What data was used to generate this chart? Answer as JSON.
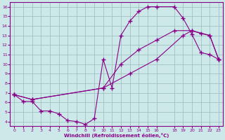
{
  "xlabel": "Windchill (Refroidissement éolien,°C)",
  "xlim": [
    -0.5,
    23.5
  ],
  "ylim": [
    3.5,
    16.5
  ],
  "yticks": [
    4,
    5,
    6,
    7,
    8,
    9,
    10,
    11,
    12,
    13,
    14,
    15,
    16
  ],
  "xticks": [
    0,
    1,
    2,
    3,
    4,
    5,
    6,
    7,
    8,
    9,
    10,
    11,
    12,
    13,
    14,
    15,
    16,
    18,
    19,
    20,
    21,
    22,
    23
  ],
  "xtick_labels": [
    "0",
    "1",
    "2",
    "3",
    "4",
    "5",
    "6",
    "7",
    "8",
    "9",
    "10",
    "11",
    "12",
    "13",
    "14",
    "15",
    "16",
    "18",
    "19",
    "20",
    "21",
    "22",
    "23"
  ],
  "bg_color": "#cde8e8",
  "line_color": "#880088",
  "grid_color": "#99bbbb",
  "line1_x": [
    0,
    1,
    2,
    3,
    4,
    5,
    6,
    7,
    8,
    9,
    10,
    11,
    12,
    13,
    14,
    15,
    16,
    18,
    19,
    20,
    21,
    22,
    23
  ],
  "line1_y": [
    6.8,
    6.1,
    6.1,
    5.1,
    5.1,
    4.8,
    4.1,
    4.0,
    3.7,
    4.3,
    10.5,
    7.5,
    13.0,
    14.5,
    15.5,
    16.0,
    16.0,
    16.0,
    14.8,
    13.1,
    11.2,
    11.0,
    10.5
  ],
  "line2_x": [
    0,
    2,
    10,
    12,
    14,
    16,
    18,
    20,
    21,
    22,
    23
  ],
  "line2_y": [
    6.8,
    6.3,
    7.5,
    10.0,
    11.5,
    12.5,
    13.5,
    13.5,
    13.2,
    13.0,
    10.5
  ],
  "line3_x": [
    0,
    2,
    10,
    13,
    16,
    19,
    20,
    22,
    23
  ],
  "line3_y": [
    6.8,
    6.3,
    7.5,
    9.0,
    10.5,
    13.0,
    13.5,
    13.0,
    10.5
  ]
}
